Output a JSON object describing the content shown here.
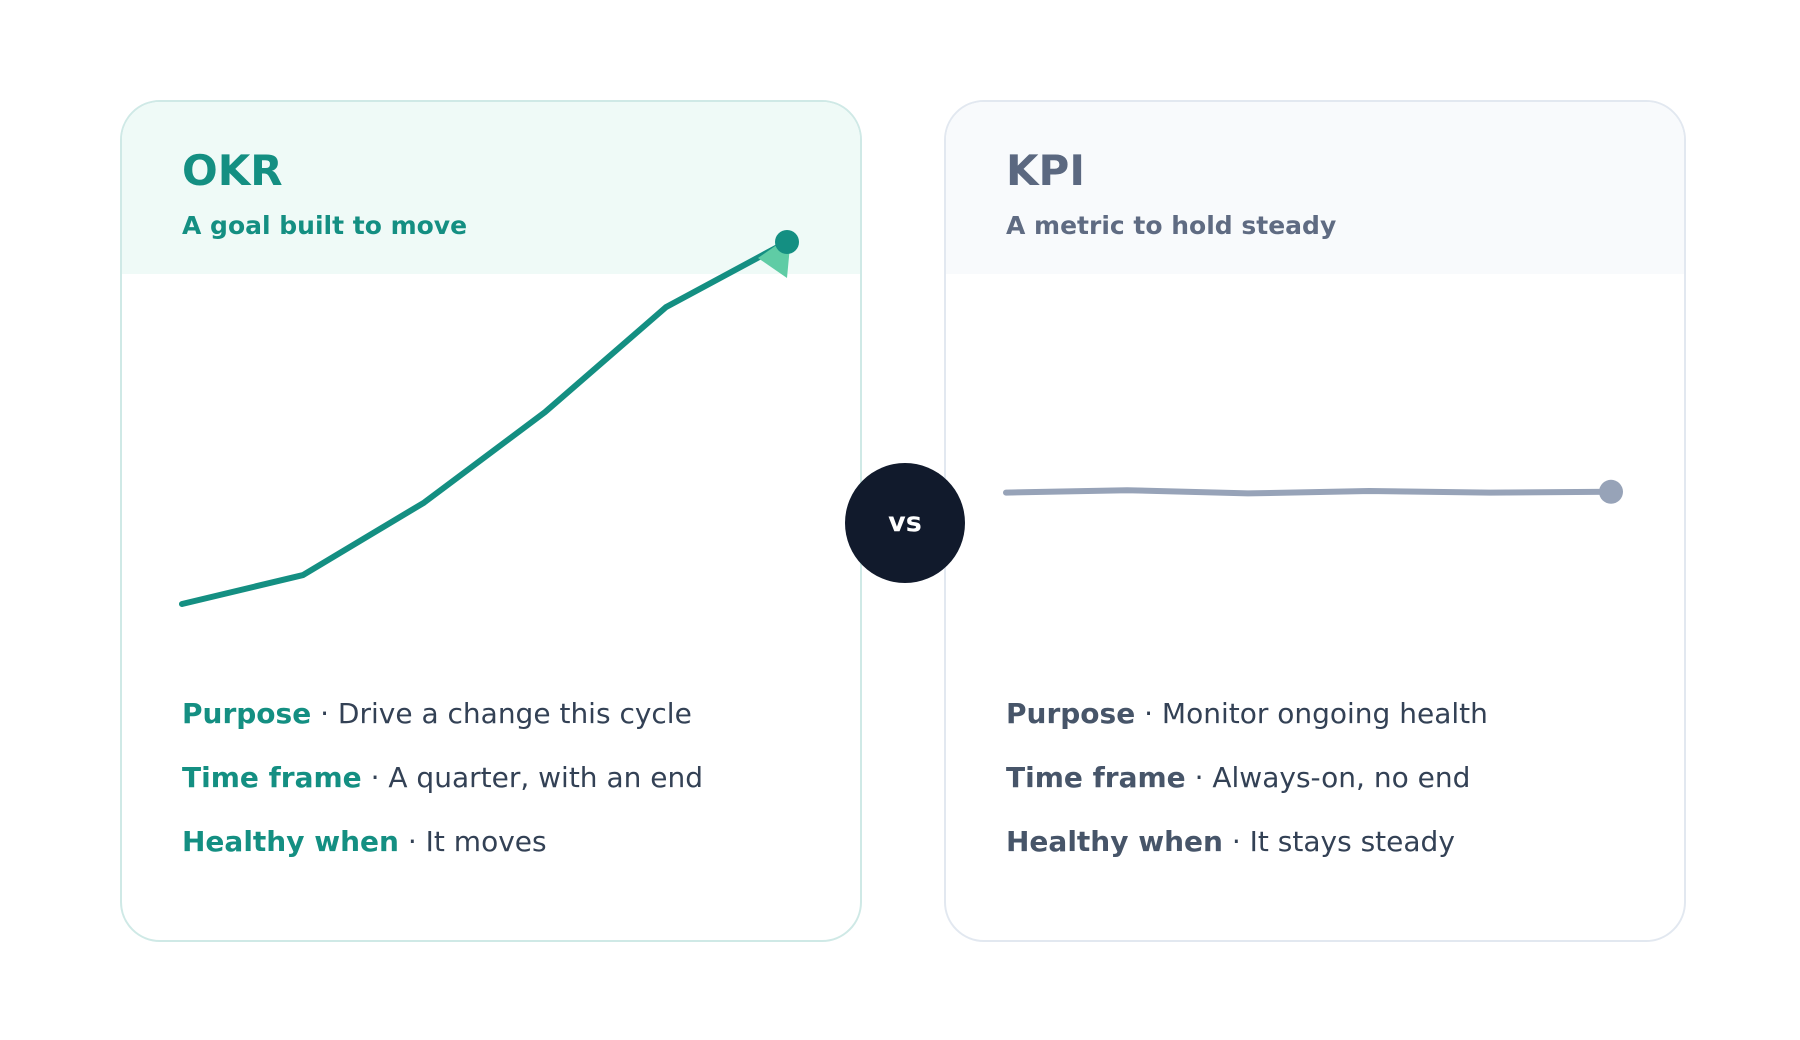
{
  "okr": {
    "title": "OKR",
    "subtitle": "A goal built to move",
    "line_color": "#148f82",
    "arrow_color": "#5fcca5",
    "series": [
      0,
      0.08,
      0.28,
      0.53,
      0.82,
      1.0
    ],
    "rows": [
      {
        "label": "Purpose",
        "sep": " · ",
        "value": "Drive a change this cycle"
      },
      {
        "label": "Time frame",
        "sep": " · ",
        "value": "A quarter, with an end"
      },
      {
        "label": "Healthy when",
        "sep": " · ",
        "value": "It moves"
      }
    ]
  },
  "kpi": {
    "title": "KPI",
    "subtitle": "A metric to hold steady",
    "line_color": "#97a3b8",
    "series": [
      0.48,
      0.51,
      0.47,
      0.5,
      0.48,
      0.49
    ],
    "rows": [
      {
        "label": "Purpose",
        "sep": " · ",
        "value": "Monitor ongoing health"
      },
      {
        "label": "Time frame",
        "sep": " · ",
        "value": "Always-on, no end"
      },
      {
        "label": "Healthy when",
        "sep": " · ",
        "value": "It stays steady"
      }
    ]
  },
  "vs": {
    "label": "vs"
  }
}
